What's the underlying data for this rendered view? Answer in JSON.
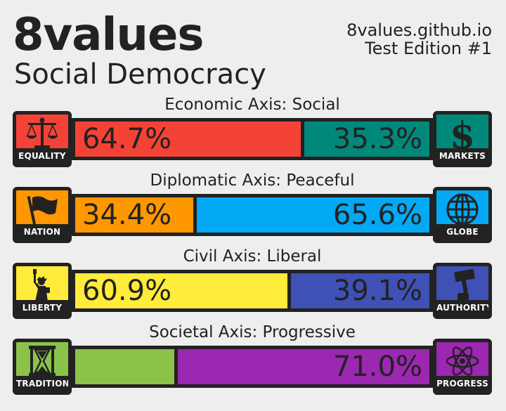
{
  "header": {
    "title": "8values",
    "subtitle": "Social Democracy",
    "site": "8values.github.io",
    "edition": "Test Edition #1"
  },
  "chart_data": {
    "type": "bar",
    "axes": [
      {
        "label": "Economic Axis: Social",
        "left": {
          "name": "EQUALITY",
          "icon": "scales-icon",
          "value": 64.7,
          "text": "64.7%",
          "color": "#f44336"
        },
        "right": {
          "name": "MARKETS",
          "icon": "dollar-icon",
          "value": 35.3,
          "text": "35.3%",
          "color": "#00897b"
        }
      },
      {
        "label": "Diplomatic Axis: Peaceful",
        "left": {
          "name": "NATION",
          "icon": "flag-icon",
          "value": 34.4,
          "text": "34.4%",
          "color": "#ff9800"
        },
        "right": {
          "name": "GLOBE",
          "icon": "globe-icon",
          "value": 65.6,
          "text": "65.6%",
          "color": "#03a9f4"
        }
      },
      {
        "label": "Civil Axis: Liberal",
        "left": {
          "name": "LIBERTY",
          "icon": "statue-of-liberty-icon",
          "value": 60.9,
          "text": "60.9%",
          "color": "#ffeb3b"
        },
        "right": {
          "name": "AUTHORITY",
          "icon": "gavel-icon",
          "value": 39.1,
          "text": "39.1%",
          "color": "#3f51b5"
        }
      },
      {
        "label": "Societal Axis: Progressive",
        "left": {
          "name": "TRADITION",
          "icon": "hourglass-icon",
          "value": 29.0,
          "text": "",
          "color": "#8bc34a"
        },
        "right": {
          "name": "PROGRESS",
          "icon": "atom-icon",
          "value": 71.0,
          "text": "71.0%",
          "color": "#9c27b0"
        }
      }
    ]
  }
}
